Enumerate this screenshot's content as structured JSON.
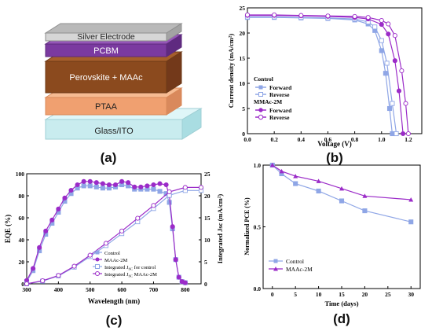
{
  "panel_labels": [
    "(a)",
    "(b)",
    "(c)",
    "(d)"
  ],
  "colors": {
    "silver": "#cfcfcf",
    "pcbm": "#7b3aa0",
    "perovskite": "#8b4a1e",
    "ptaa": "#f0a070",
    "glass": "#c9ecef",
    "blue": "#8fa6e6",
    "purple": "#9b2bc8"
  },
  "stack": {
    "layers": [
      "Silver Electrode",
      "PCBM",
      "Perovskite + MAAc",
      "PTAA",
      "Glass/ITO"
    ]
  },
  "chart_data": [
    {
      "type": "line",
      "panel": "(b)",
      "xlabel": "Voltage (V)",
      "ylabel": "Current density (mA/cm²)",
      "xlim": [
        0.0,
        1.3
      ],
      "ylim": [
        0,
        25
      ],
      "xticks": [
        "0.0",
        "0.2",
        "0.4",
        "0.6",
        "0.8",
        "1.0",
        "1.2"
      ],
      "yticks": [
        "0",
        "5",
        "10",
        "15",
        "20",
        "25"
      ],
      "legend_headers": [
        "Control",
        "MMAc-2M"
      ],
      "legend_placement": "left",
      "series": [
        {
          "name": "Forward",
          "group": "Control",
          "marker": "filled-square",
          "x": [
            0,
            0.2,
            0.4,
            0.6,
            0.8,
            0.9,
            0.95,
            1.0,
            1.03,
            1.06,
            1.08
          ],
          "y": [
            23.1,
            23.1,
            23.0,
            22.9,
            22.6,
            21.8,
            20.5,
            16.5,
            12.0,
            5.0,
            0
          ]
        },
        {
          "name": "Reverse",
          "group": "Control",
          "marker": "open-square",
          "x": [
            0,
            0.2,
            0.4,
            0.6,
            0.8,
            0.9,
            0.95,
            1.0,
            1.04,
            1.08,
            1.11
          ],
          "y": [
            23.2,
            23.2,
            23.1,
            23.0,
            22.8,
            22.2,
            21.2,
            18.5,
            14.0,
            6.0,
            0
          ]
        },
        {
          "name": "Forward",
          "group": "MMAc-2M",
          "marker": "filled-circle",
          "x": [
            0,
            0.2,
            0.4,
            0.6,
            0.8,
            0.9,
            1.0,
            1.05,
            1.1,
            1.13,
            1.16
          ],
          "y": [
            23.5,
            23.5,
            23.4,
            23.3,
            23.1,
            22.8,
            21.7,
            19.8,
            14.5,
            8.5,
            0
          ]
        },
        {
          "name": "Reverse",
          "group": "MMAc-2M",
          "marker": "open-circle",
          "x": [
            0,
            0.2,
            0.4,
            0.6,
            0.8,
            0.9,
            1.0,
            1.05,
            1.1,
            1.15,
            1.18,
            1.2
          ],
          "y": [
            23.6,
            23.6,
            23.5,
            23.4,
            23.3,
            23.1,
            22.5,
            21.8,
            19.5,
            12.5,
            6.0,
            0
          ]
        }
      ]
    },
    {
      "type": "line",
      "panel": "(c)",
      "xlabel": "Wavelength (nm)",
      "ylabel": "EQE (%)",
      "ylabel_right": "Integrated Jsc (mA/cm²)",
      "xlim": [
        300,
        850
      ],
      "ylim": [
        0,
        100
      ],
      "ylim_right": [
        0,
        25
      ],
      "xticks": [
        "300",
        "400",
        "500",
        "600",
        "700",
        "800"
      ],
      "yticks": [
        "0",
        "20",
        "40",
        "60",
        "80",
        "100"
      ],
      "yticks_right": [
        "0",
        "5",
        "10",
        "15",
        "20",
        "25"
      ],
      "legend_placement": "bottom-right",
      "series": [
        {
          "name": "Control",
          "marker": "filled-square",
          "axis": "left",
          "x": [
            300,
            320,
            340,
            360,
            380,
            400,
            420,
            440,
            460,
            480,
            500,
            520,
            540,
            560,
            580,
            600,
            620,
            640,
            660,
            680,
            700,
            720,
            740,
            750,
            760,
            770,
            780,
            790,
            800
          ],
          "y": [
            2,
            12,
            30,
            45,
            55,
            65,
            75,
            82,
            87,
            89,
            89,
            88,
            87,
            87,
            88,
            90,
            89,
            86,
            86,
            86,
            86,
            84,
            82,
            74,
            50,
            22,
            6,
            2,
            1
          ]
        },
        {
          "name": "MAAc-2M",
          "marker": "filled-circle",
          "axis": "left",
          "x": [
            300,
            320,
            340,
            360,
            380,
            400,
            420,
            440,
            460,
            480,
            500,
            520,
            540,
            560,
            580,
            600,
            620,
            640,
            660,
            680,
            700,
            720,
            740,
            750,
            760,
            770,
            780,
            790,
            800
          ],
          "y": [
            3,
            14,
            33,
            48,
            58,
            68,
            78,
            85,
            90,
            93,
            93,
            92,
            91,
            90,
            90,
            93,
            92,
            88,
            88,
            89,
            90,
            91,
            90,
            80,
            52,
            22,
            6,
            2,
            1
          ]
        },
        {
          "name": "Integrated J",
          "name_sub": "SC",
          "name_suffix": " for control",
          "marker": "open-square",
          "axis": "right",
          "x": [
            300,
            350,
            400,
            450,
            500,
            550,
            600,
            650,
            700,
            750,
            800,
            850
          ],
          "y": [
            0,
            0.6,
            1.8,
            3.8,
            6.2,
            8.7,
            11.4,
            14.1,
            17.1,
            20.1,
            21.2,
            21.2
          ]
        },
        {
          "name": "Integrated J",
          "name_sub": "SC",
          "name_suffix": " MAAc-2M",
          "marker": "open-circle",
          "axis": "right",
          "x": [
            300,
            350,
            400,
            450,
            500,
            550,
            600,
            650,
            700,
            750,
            800,
            850
          ],
          "y": [
            0,
            0.7,
            1.9,
            4.0,
            6.5,
            9.2,
            12.0,
            14.9,
            17.8,
            20.9,
            21.9,
            21.9
          ]
        }
      ]
    },
    {
      "type": "line",
      "panel": "(d)",
      "xlabel": "Time (days)",
      "ylabel": "Normalized PCE (%)",
      "xlim": [
        -2,
        32
      ],
      "ylim": [
        0.0,
        1.0
      ],
      "xticks": [
        "0",
        "5",
        "10",
        "15",
        "20",
        "25",
        "30"
      ],
      "yticks": [
        "0.0",
        "0.5",
        "1.0"
      ],
      "legend_placement": "lower-left",
      "series": [
        {
          "name": "Control",
          "marker": "filled-square",
          "x": [
            0,
            2,
            5,
            10,
            15,
            20,
            30
          ],
          "y": [
            1.0,
            0.93,
            0.85,
            0.79,
            0.71,
            0.63,
            0.54
          ]
        },
        {
          "name": "MAAc-2M",
          "marker": "filled-triangle",
          "x": [
            0,
            2,
            5,
            10,
            15,
            20,
            30
          ],
          "y": [
            1.0,
            0.95,
            0.91,
            0.87,
            0.81,
            0.75,
            0.72
          ]
        }
      ]
    }
  ]
}
